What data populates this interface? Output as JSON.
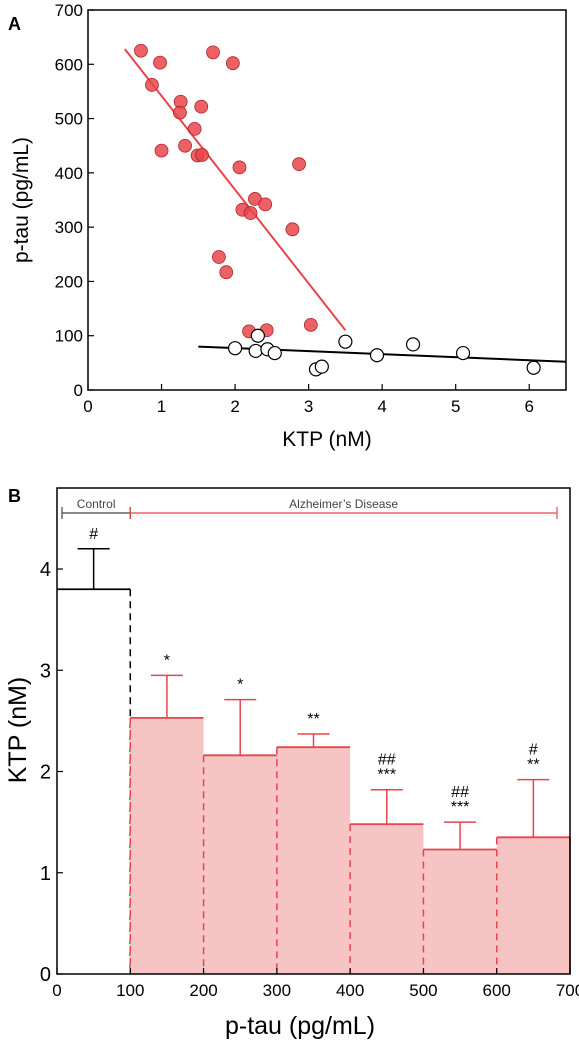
{
  "colors": {
    "ad": "#e8454a",
    "ad_fill": "#f7c4c4",
    "control": "#000000"
  },
  "chart_data": [
    {
      "panel": "A",
      "type": "scatter",
      "xlabel": "KTP (nM)",
      "ylabel": "p-tau (pg/mL)",
      "xlim": [
        0,
        6.5
      ],
      "ylim": [
        0,
        700
      ],
      "xticks": [
        0,
        1,
        2,
        3,
        4,
        5,
        6
      ],
      "yticks": [
        0,
        100,
        200,
        300,
        400,
        500,
        600,
        700
      ],
      "series": [
        {
          "marker": "filled",
          "color": "#e8454a",
          "x": [
            0.72,
            0.98,
            0.87,
            1.26,
            1.25,
            1.54,
            1.7,
            1.97,
            1.45,
            1.0,
            1.32,
            1.49,
            1.55,
            2.06,
            2.87,
            2.27,
            2.41,
            2.1,
            2.21,
            2.78,
            1.78,
            1.88,
            2.19,
            2.43,
            3.03
          ],
          "y": [
            625,
            603,
            562,
            531,
            511,
            522,
            622,
            602,
            481,
            441,
            450,
            432,
            433,
            410,
            416,
            352,
            342,
            332,
            326,
            296,
            245,
            217,
            108,
            110,
            120
          ],
          "fit": {
            "x": [
              0.5,
              3.5
            ],
            "y": [
              628,
              110
            ]
          }
        },
        {
          "marker": "open",
          "color": "#000000",
          "x": [
            2.31,
            2.28,
            2.0,
            2.44,
            2.54,
            3.1,
            3.18,
            3.5,
            3.93,
            4.42,
            5.1,
            6.06
          ],
          "y": [
            100,
            72,
            77,
            75,
            68,
            38,
            43,
            89,
            64,
            84,
            68,
            41
          ],
          "fit": {
            "x": [
              1.5,
              6.5
            ],
            "y": [
              80,
              52
            ]
          }
        }
      ]
    },
    {
      "panel": "B",
      "type": "bar",
      "xlabel": "p-tau (pg/mL)",
      "ylabel": "KTP (nM)",
      "xlim": [
        0,
        700
      ],
      "ylim": [
        0,
        4.8
      ],
      "xticks": [
        0,
        100,
        200,
        300,
        400,
        500,
        600,
        700
      ],
      "yticks": [
        0,
        1,
        2,
        3,
        4
      ],
      "groups": [
        {
          "label": "Control",
          "from": 0,
          "to": 100
        },
        {
          "label": "Alzheimer’s Disease",
          "from": 100,
          "to": 700
        }
      ],
      "bins": [
        {
          "from": 0,
          "to": 100,
          "value": 3.8,
          "err": 0.4,
          "group": "control",
          "sig": [
            "#"
          ]
        },
        {
          "from": 100,
          "to": 200,
          "value": 2.53,
          "err": 0.42,
          "group": "ad",
          "sig": [
            "*"
          ]
        },
        {
          "from": 200,
          "to": 300,
          "value": 2.16,
          "err": 0.55,
          "group": "ad",
          "sig": [
            "*"
          ]
        },
        {
          "from": 300,
          "to": 400,
          "value": 2.24,
          "err": 0.13,
          "group": "ad",
          "sig": [
            "**"
          ]
        },
        {
          "from": 400,
          "to": 500,
          "value": 1.48,
          "err": 0.34,
          "group": "ad",
          "sig": [
            "##",
            "***"
          ]
        },
        {
          "from": 500,
          "to": 600,
          "value": 1.23,
          "err": 0.27,
          "group": "ad",
          "sig": [
            "##",
            "***"
          ]
        },
        {
          "from": 600,
          "to": 700,
          "value": 1.35,
          "err": 0.57,
          "group": "ad",
          "sig": [
            "#",
            "**"
          ]
        }
      ]
    }
  ]
}
